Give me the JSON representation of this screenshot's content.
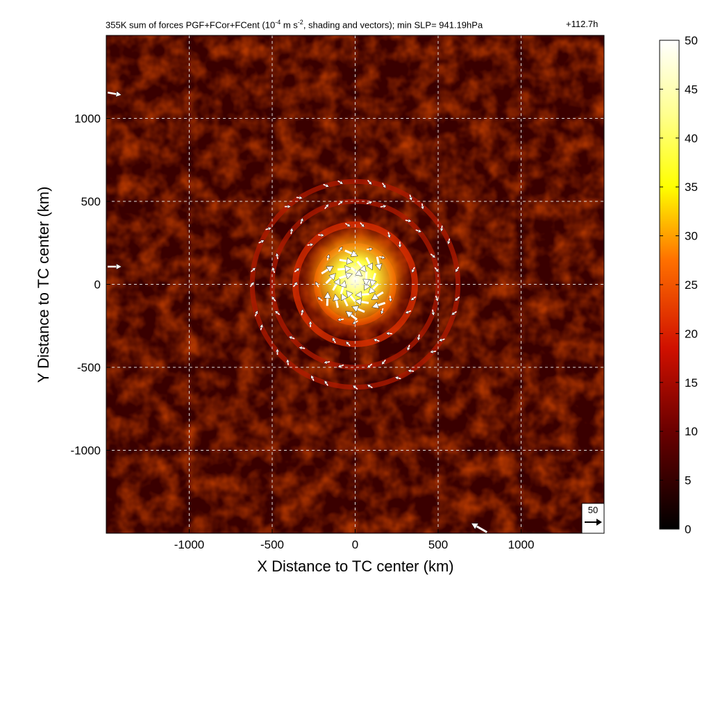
{
  "title": {
    "prefix": "355K sum of forces PGF+FCor+FCent (10",
    "exp1": "-4",
    "mid": " m s",
    "exp2": "-2",
    "suffix": ", shading and vectors); min SLP= 941.19hPa",
    "time": "+112.7h"
  },
  "chart_data": {
    "type": "heatmap",
    "xlabel": "X Distance to TC center (km)",
    "ylabel": "Y Distance to TC center (km)",
    "xlim": [
      -1500,
      1500
    ],
    "ylim": [
      -1500,
      1500
    ],
    "xticks": [
      -1000,
      -500,
      0,
      500,
      1000
    ],
    "yticks": [
      -1000,
      -500,
      0,
      500,
      1000
    ],
    "grid": true,
    "colorbar": {
      "min": 0,
      "max": 50,
      "ticks": [
        0,
        5,
        10,
        15,
        20,
        25,
        30,
        35,
        40,
        45,
        50
      ],
      "colormap": "hot",
      "position": "right"
    },
    "reference_vector": {
      "label": "50"
    },
    "features": {
      "center": [
        0,
        0
      ],
      "min_slp_hpa": 941.19,
      "rings_km": [
        230,
        360,
        500,
        620
      ],
      "core_max_value": 50
    }
  },
  "colors": {
    "background_dark": "#3a0000",
    "ring_mid": "#b01a00",
    "core": "#ffff60",
    "vectors": "#ffffff",
    "grid": "#dddddd"
  }
}
